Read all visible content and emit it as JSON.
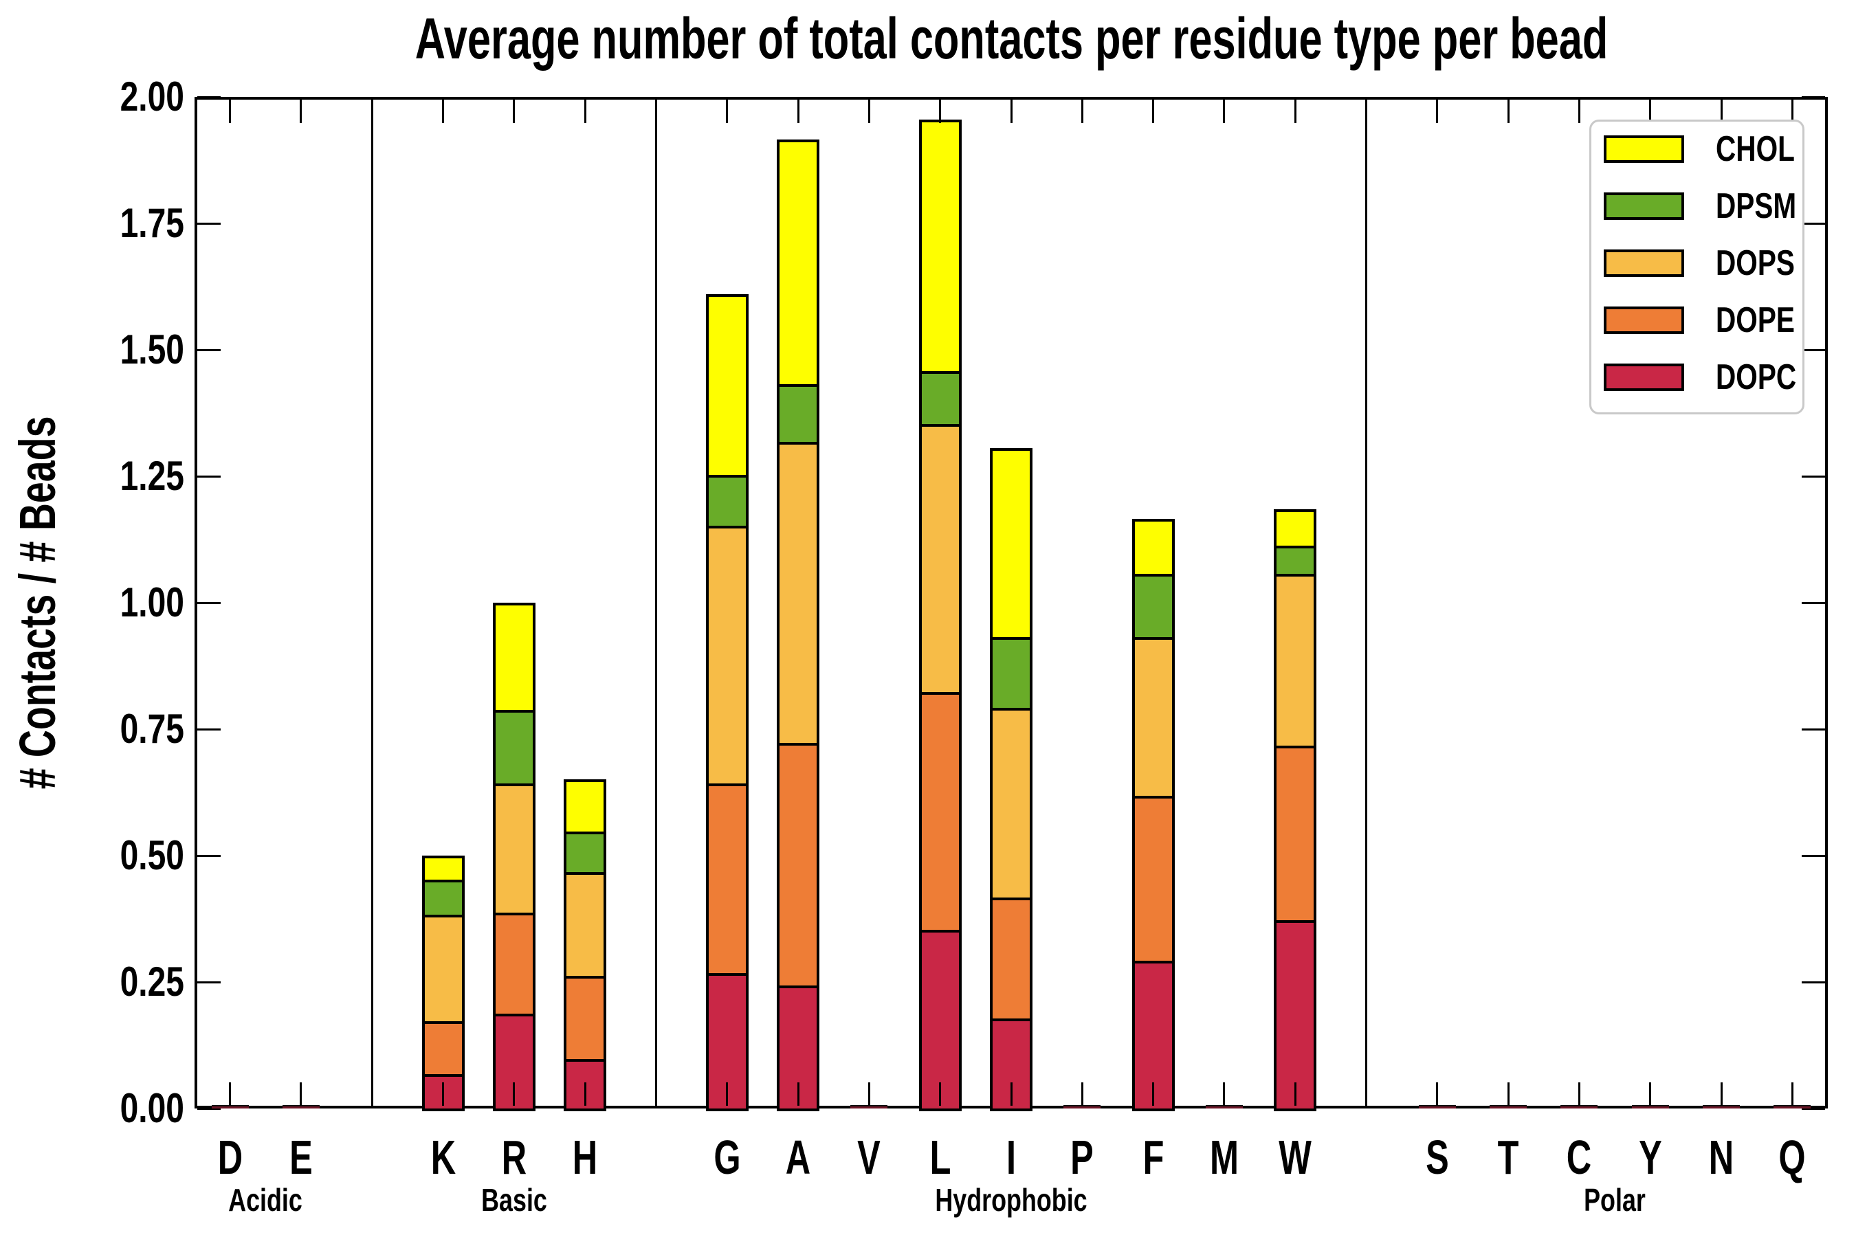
{
  "chart_data": {
    "type": "bar",
    "stacked": true,
    "title": "Average number of total contacts per residue type per bead",
    "ylabel": "# Contacts / # Beads",
    "xlabel": "",
    "ylim": [
      0.0,
      2.0
    ],
    "ytick_step": 0.25,
    "ytick_labels": [
      "0.00",
      "0.25",
      "0.50",
      "0.75",
      "1.00",
      "1.25",
      "1.50",
      "1.75",
      "2.00"
    ],
    "grid": false,
    "legend_position": "upper right",
    "stack_order_bottom_to_top": [
      "DOPC",
      "DOPE",
      "DOPS",
      "DPSM",
      "CHOL"
    ],
    "legend_entries": [
      {
        "label": "CHOL",
        "color": "#fefe00"
      },
      {
        "label": "DPSM",
        "color": "#69ac28"
      },
      {
        "label": "DOPS",
        "color": "#f7bc47"
      },
      {
        "label": "DOPE",
        "color": "#ee7d36"
      },
      {
        "label": "DOPC",
        "color": "#c92746"
      }
    ],
    "colors": {
      "DOPC": "#c92746",
      "DOPE": "#ee7d36",
      "DOPS": "#f7bc47",
      "DPSM": "#69ac28",
      "CHOL": "#fefe00"
    },
    "groups": [
      {
        "label": "Acidic",
        "residues": [
          {
            "letter": "D",
            "values": {
              "DOPC": 0.005,
              "DOPE": 0,
              "DOPS": 0,
              "DPSM": 0,
              "CHOL": 0
            }
          },
          {
            "letter": "E",
            "values": {
              "DOPC": 0.005,
              "DOPE": 0,
              "DOPS": 0,
              "DPSM": 0,
              "CHOL": 0
            }
          }
        ]
      },
      {
        "label": "Basic",
        "residues": [
          {
            "letter": "K",
            "values": {
              "DOPC": 0.065,
              "DOPE": 0.105,
              "DOPS": 0.21,
              "DPSM": 0.07,
              "CHOL": 0.045
            }
          },
          {
            "letter": "R",
            "values": {
              "DOPC": 0.185,
              "DOPE": 0.2,
              "DOPS": 0.255,
              "DPSM": 0.145,
              "CHOL": 0.21
            }
          },
          {
            "letter": "H",
            "values": {
              "DOPC": 0.095,
              "DOPE": 0.165,
              "DOPS": 0.205,
              "DPSM": 0.08,
              "CHOL": 0.1
            }
          }
        ]
      },
      {
        "label": "Hydrophobic",
        "residues": [
          {
            "letter": "G",
            "values": {
              "DOPC": 0.265,
              "DOPE": 0.375,
              "DOPS": 0.51,
              "DPSM": 0.1,
              "CHOL": 0.355
            }
          },
          {
            "letter": "A",
            "values": {
              "DOPC": 0.24,
              "DOPE": 0.48,
              "DOPS": 0.595,
              "DPSM": 0.115,
              "CHOL": 0.48
            }
          },
          {
            "letter": "V",
            "values": {
              "DOPC": 0.005,
              "DOPE": 0,
              "DOPS": 0,
              "DPSM": 0,
              "CHOL": 0
            }
          },
          {
            "letter": "L",
            "values": {
              "DOPC": 0.35,
              "DOPE": 0.47,
              "DOPS": 0.53,
              "DPSM": 0.105,
              "CHOL": 0.495
            }
          },
          {
            "letter": "I",
            "values": {
              "DOPC": 0.175,
              "DOPE": 0.24,
              "DOPS": 0.375,
              "DPSM": 0.14,
              "CHOL": 0.37
            }
          },
          {
            "letter": "P",
            "values": {
              "DOPC": 0.005,
              "DOPE": 0,
              "DOPS": 0,
              "DPSM": 0,
              "CHOL": 0
            }
          },
          {
            "letter": "F",
            "values": {
              "DOPC": 0.29,
              "DOPE": 0.325,
              "DOPS": 0.315,
              "DPSM": 0.125,
              "CHOL": 0.105
            }
          },
          {
            "letter": "M",
            "values": {
              "DOPC": 0.005,
              "DOPE": 0,
              "DOPS": 0,
              "DPSM": 0,
              "CHOL": 0
            }
          },
          {
            "letter": "W",
            "values": {
              "DOPC": 0.37,
              "DOPE": 0.345,
              "DOPS": 0.34,
              "DPSM": 0.055,
              "CHOL": 0.07
            }
          }
        ]
      },
      {
        "label": "Polar",
        "residues": [
          {
            "letter": "S",
            "values": {
              "DOPC": 0.005,
              "DOPE": 0,
              "DOPS": 0,
              "DPSM": 0,
              "CHOL": 0
            }
          },
          {
            "letter": "T",
            "values": {
              "DOPC": 0.005,
              "DOPE": 0,
              "DOPS": 0,
              "DPSM": 0,
              "CHOL": 0
            }
          },
          {
            "letter": "C",
            "values": {
              "DOPC": 0.005,
              "DOPE": 0,
              "DOPS": 0,
              "DPSM": 0,
              "CHOL": 0
            }
          },
          {
            "letter": "Y",
            "values": {
              "DOPC": 0.005,
              "DOPE": 0,
              "DOPS": 0,
              "DPSM": 0,
              "CHOL": 0
            }
          },
          {
            "letter": "N",
            "values": {
              "DOPC": 0.005,
              "DOPE": 0,
              "DOPS": 0,
              "DPSM": 0,
              "CHOL": 0
            }
          },
          {
            "letter": "Q",
            "values": {
              "DOPC": 0.005,
              "DOPE": 0,
              "DOPS": 0,
              "DPSM": 0,
              "CHOL": 0
            }
          }
        ]
      }
    ]
  }
}
